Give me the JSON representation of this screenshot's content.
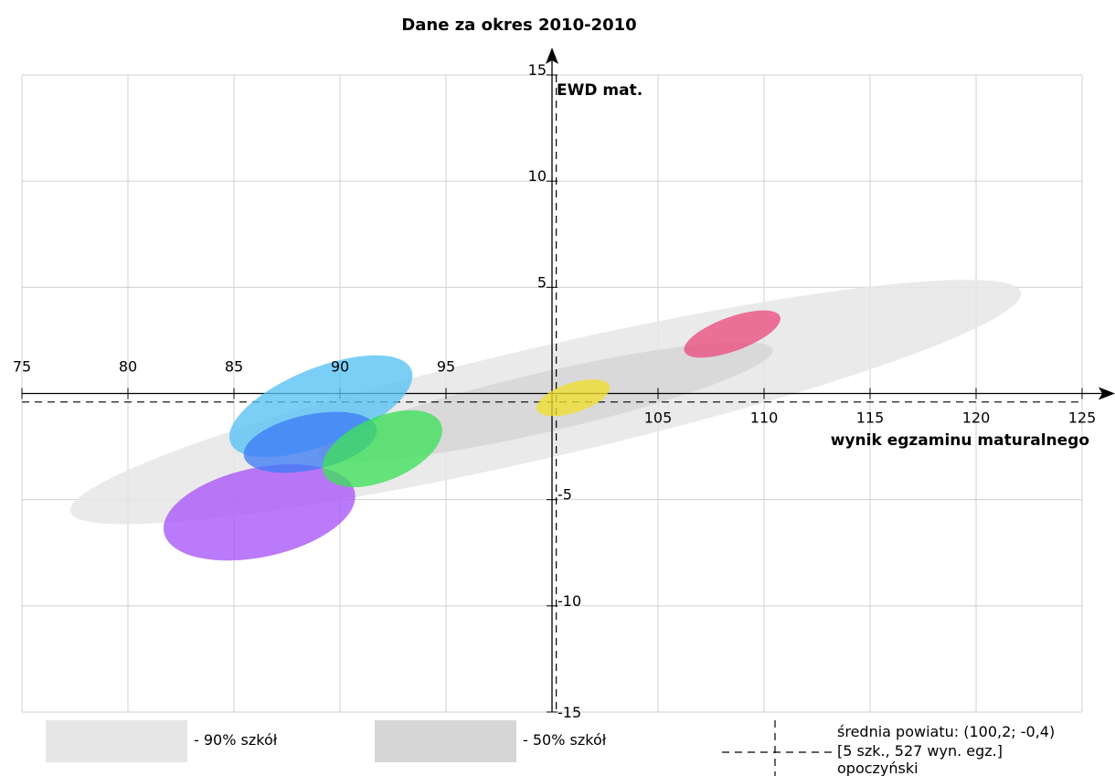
{
  "chart_data": {
    "type": "scatter",
    "title": "Dane za okres 2010-2010",
    "xlabel": "wynik egzaminu maturalnego",
    "ylabel": "EWD mat.",
    "xlim": [
      75,
      125
    ],
    "ylim": [
      -15,
      15
    ],
    "x_ticks": [
      75,
      80,
      85,
      90,
      95,
      105,
      110,
      115,
      120,
      125
    ],
    "y_ticks": [
      15,
      10,
      5,
      -5,
      -10,
      -15
    ],
    "grid": true,
    "reference_lines": {
      "x": 100.2,
      "y": -0.4,
      "style": "dashed"
    },
    "regions": [
      {
        "label": "90% szkół",
        "color": "#e6e6e6",
        "cx": 99.7,
        "cy": -0.4,
        "a": 23.0,
        "b": 2.6,
        "angle_deg": 13
      },
      {
        "label": "50% szkół",
        "color": "#d6d6d6",
        "cx": 99.7,
        "cy": -0.4,
        "a": 11.0,
        "b": 1.4,
        "angle_deg": 13
      }
    ],
    "series": [
      {
        "color": "#a855f7",
        "cx": 86.2,
        "cy": -5.6,
        "a": 4.6,
        "b": 2.1,
        "angle_deg": 12
      },
      {
        "color": "#56c2f5",
        "cx": 89.1,
        "cy": -0.6,
        "a": 4.6,
        "b": 1.8,
        "angle_deg": 22
      },
      {
        "color": "#3d7cf5",
        "cx": 88.6,
        "cy": -2.3,
        "a": 3.2,
        "b": 1.3,
        "angle_deg": 12
      },
      {
        "color": "#3ee05a",
        "cx": 92.0,
        "cy": -2.6,
        "a": 3.0,
        "b": 1.5,
        "angle_deg": 23
      },
      {
        "color": "#f0de2e",
        "cx": 101.0,
        "cy": -0.2,
        "a": 1.8,
        "b": 0.7,
        "angle_deg": 18
      },
      {
        "color": "#ea4d7f",
        "cx": 108.5,
        "cy": 2.8,
        "a": 2.4,
        "b": 0.8,
        "angle_deg": 20
      }
    ]
  },
  "legend": {
    "region90": {
      "label": "- 90% szkół",
      "color": "#e6e6e6"
    },
    "region50": {
      "label": "- 50% szkół",
      "color": "#d6d6d6"
    },
    "average": {
      "line1": "średnia powiatu: (100,2; -0,4)",
      "line2": "[5 szk., 527 wyn. egz.]",
      "line3": "opoczyński"
    }
  }
}
